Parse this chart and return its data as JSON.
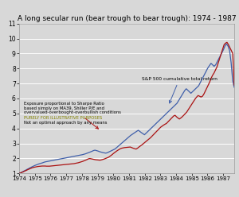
{
  "title": "A long secular run (bear trough to bear trough): 1974 - 1987",
  "title_fontsize": 6.5,
  "xlim": [
    1974,
    1987.7
  ],
  "ylim": [
    1,
    11
  ],
  "yticks": [
    1,
    2,
    3,
    4,
    5,
    6,
    7,
    8,
    9,
    10,
    11
  ],
  "xticks": [
    1974,
    1975,
    1976,
    1977,
    1978,
    1979,
    1980,
    1981,
    1982,
    1983,
    1984,
    1985,
    1986,
    1987
  ],
  "sp500_label": "S&P 500 cumulative total return",
  "strategy_line1": "Exposure proportional to Sharpe Ratio",
  "strategy_line2": "based simply on MA39, Shiller P/E and",
  "strategy_line3": "overvalued-overbought-overbullish conditions",
  "strategy_line4": "PURELY FOR ILLUSTRATIVE PURPOSES",
  "strategy_line5": "Not an optimal approach by any means",
  "sp500_color": "#3F5FAA",
  "strategy_color": "#AA1111",
  "illustrative_color": "#808000",
  "bg_color": "#D8D8D8",
  "grid_color": "#FFFFFF",
  "sp500_data": [
    1.0,
    1.04,
    1.09,
    1.15,
    1.2,
    1.26,
    1.31,
    1.37,
    1.42,
    1.47,
    1.52,
    1.56,
    1.6,
    1.64,
    1.67,
    1.7,
    1.74,
    1.77,
    1.79,
    1.81,
    1.83,
    1.85,
    1.87,
    1.89,
    1.91,
    1.93,
    1.95,
    1.97,
    1.99,
    2.01,
    2.03,
    2.05,
    2.07,
    2.09,
    2.11,
    2.13,
    2.15,
    2.17,
    2.19,
    2.21,
    2.23,
    2.25,
    2.28,
    2.31,
    2.35,
    2.39,
    2.43,
    2.47,
    2.52,
    2.55,
    2.52,
    2.49,
    2.45,
    2.42,
    2.39,
    2.37,
    2.35,
    2.38,
    2.43,
    2.48,
    2.53,
    2.58,
    2.63,
    2.72,
    2.81,
    2.9,
    2.99,
    3.08,
    3.17,
    3.26,
    3.35,
    3.44,
    3.53,
    3.6,
    3.67,
    3.74,
    3.81,
    3.88,
    3.8,
    3.72,
    3.65,
    3.58,
    3.68,
    3.78,
    3.88,
    3.98,
    4.08,
    4.18,
    4.28,
    4.38,
    4.48,
    4.58,
    4.68,
    4.78,
    4.88,
    4.98,
    5.08,
    5.18,
    5.28,
    5.38,
    5.48,
    5.58,
    5.68,
    5.85,
    6.02,
    6.19,
    6.36,
    6.53,
    6.65,
    6.55,
    6.45,
    6.35,
    6.45,
    6.55,
    6.65,
    6.75,
    6.85,
    7.05,
    7.25,
    7.45,
    7.65,
    7.85,
    8.05,
    8.2,
    8.35,
    8.25,
    8.15,
    8.25,
    8.45,
    8.65,
    8.85,
    9.05,
    9.25,
    9.5,
    9.65,
    9.5,
    9.2,
    8.4,
    7.2,
    6.75
  ],
  "strategy_data": [
    1.0,
    1.03,
    1.07,
    1.11,
    1.16,
    1.2,
    1.25,
    1.29,
    1.33,
    1.37,
    1.4,
    1.42,
    1.44,
    1.46,
    1.47,
    1.48,
    1.49,
    1.49,
    1.49,
    1.48,
    1.48,
    1.48,
    1.49,
    1.5,
    1.51,
    1.52,
    1.53,
    1.54,
    1.55,
    1.56,
    1.57,
    1.58,
    1.59,
    1.6,
    1.61,
    1.62,
    1.63,
    1.64,
    1.65,
    1.67,
    1.69,
    1.71,
    1.74,
    1.77,
    1.8,
    1.84,
    1.88,
    1.92,
    1.97,
    1.99,
    1.97,
    1.95,
    1.93,
    1.91,
    1.9,
    1.89,
    1.88,
    1.9,
    1.93,
    1.96,
    2.0,
    2.04,
    2.08,
    2.15,
    2.22,
    2.3,
    2.38,
    2.45,
    2.52,
    2.58,
    2.64,
    2.68,
    2.7,
    2.72,
    2.73,
    2.74,
    2.75,
    2.76,
    2.72,
    2.68,
    2.65,
    2.62,
    2.68,
    2.76,
    2.83,
    2.9,
    2.98,
    3.06,
    3.14,
    3.22,
    3.3,
    3.38,
    3.48,
    3.58,
    3.68,
    3.78,
    3.88,
    3.98,
    4.08,
    4.15,
    4.22,
    4.28,
    4.33,
    4.43,
    4.53,
    4.63,
    4.73,
    4.83,
    4.88,
    4.78,
    4.7,
    4.63,
    4.7,
    4.78,
    4.88,
    4.98,
    5.08,
    5.23,
    5.38,
    5.53,
    5.68,
    5.83,
    5.98,
    6.1,
    6.2,
    6.15,
    6.1,
    6.15,
    6.3,
    6.5,
    6.7,
    6.9,
    7.1,
    7.35,
    7.55,
    7.7,
    7.9,
    8.1,
    8.4,
    8.7,
    9.0,
    9.3,
    9.6,
    9.7,
    9.75,
    9.6,
    9.4,
    9.2,
    9.0,
    6.9
  ]
}
